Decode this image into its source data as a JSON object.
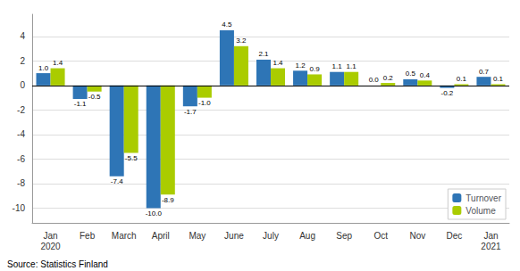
{
  "chart_data": {
    "type": "bar",
    "categories": [
      "Jan\n2020",
      "Feb",
      "March",
      "April",
      "May",
      "June",
      "July",
      "Aug",
      "Sep",
      "Oct",
      "Nov",
      "Dec",
      "Jan\n2021"
    ],
    "series": [
      {
        "name": "Turnover",
        "color": "#2E75B6",
        "values": [
          1.0,
          -1.1,
          -7.4,
          -10.0,
          -1.7,
          4.5,
          2.1,
          1.2,
          1.1,
          0.0,
          0.5,
          -0.2,
          0.7
        ],
        "value_labels": [
          "1.0",
          "-1.1",
          "-7.4",
          "-10.0",
          "-1.7",
          "4.5",
          "2.1",
          "1.2",
          "1.1",
          "0.0",
          "0.5",
          "-0.2",
          "0.7"
        ]
      },
      {
        "name": "Volume",
        "color": "#AACC00",
        "values": [
          1.4,
          -0.5,
          -5.5,
          -8.9,
          -1.0,
          3.2,
          1.4,
          0.9,
          1.1,
          0.2,
          0.4,
          0.1,
          0.1
        ],
        "value_labels": [
          "1.4",
          "-0.5",
          "-5.5",
          "-8.9",
          "-1.0",
          "3.2",
          "1.4",
          "0.9",
          "1.1",
          "0.2",
          "0.4",
          "0.1",
          "0.1"
        ]
      }
    ],
    "ylim": [
      -11.2,
      5.8
    ],
    "yticks": [
      -10,
      -8,
      -6,
      -4,
      -2,
      0,
      2,
      4
    ],
    "grid": true,
    "legend": "lower right",
    "data_labels": true,
    "annotations": [
      "Source: Statistics Finland"
    ]
  }
}
